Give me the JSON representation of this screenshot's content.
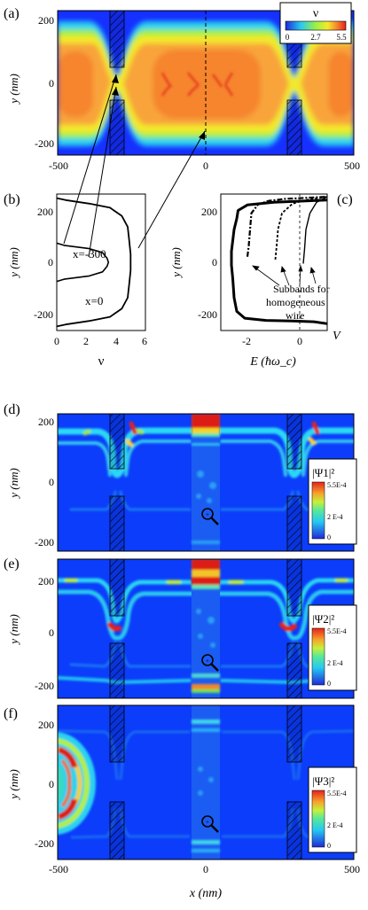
{
  "chart_data": [
    {
      "type": "heatmap",
      "panel": "(a)",
      "ylabel": "y (nm)",
      "x_range": [
        -500,
        500
      ],
      "y_range": [
        -250,
        250
      ],
      "xticks": [
        "-500",
        "0",
        "500"
      ],
      "yticks": [
        "200",
        "0",
        "-200"
      ],
      "colorbar": {
        "title": "ν",
        "ticks": [
          "0",
          "2.7",
          "5.5"
        ],
        "min": 0,
        "max": 5.5
      },
      "barriers": [
        {
          "x": [
            -330,
            -290
          ],
          "y": [
            [
              -250,
              -40
            ],
            [
              40,
              250
            ]
          ]
        },
        {
          "x": [
            290,
            330
          ],
          "y": [
            [
              -250,
              -40
            ],
            [
              40,
              250
            ]
          ]
        }
      ],
      "dashed_cut_x": 0,
      "narrow_cut_x": -300
    },
    {
      "type": "line",
      "panel": "(b)",
      "xlabel": "ν",
      "ylabel": "y (nm)",
      "xlim": [
        0,
        6
      ],
      "ylim": [
        -250,
        250
      ],
      "xticks": [
        "0",
        "2",
        "4",
        "6"
      ],
      "yticks": [
        "200",
        "0",
        "-200"
      ],
      "annotations": [
        "x=-300",
        "x=0"
      ],
      "series": [
        {
          "x": [
            0,
            0.5,
            2.2,
            3.1,
            3.4,
            3.5,
            3.4,
            3.1,
            2.2,
            0.5,
            0
          ],
          "y": [
            -70,
            -62,
            -50,
            -35,
            -15,
            0,
            15,
            35,
            50,
            62,
            70
          ]
        },
        {
          "x": [
            0,
            0.6,
            2.2,
            3.6,
            4.4,
            4.8,
            4.9,
            5.0,
            5.0,
            4.9,
            4.8,
            4.4,
            3.6,
            2.2,
            0.6,
            0
          ],
          "y": [
            -235,
            -228,
            -215,
            -200,
            -170,
            -130,
            -80,
            -30,
            30,
            80,
            130,
            170,
            200,
            215,
            228,
            235
          ]
        }
      ]
    },
    {
      "type": "line",
      "panel": "(c)",
      "xlabel": "E (ħω_c)",
      "ylabel": "y (nm)",
      "xlim": [
        -3,
        1
      ],
      "ylim": [
        -250,
        250
      ],
      "xticks": [
        "-2",
        "0"
      ],
      "yticks": [
        "200",
        "0",
        "-200"
      ],
      "annotations": [
        "Subbands for",
        "homogeneous",
        "wire",
        "V"
      ],
      "series": [
        {
          "name": "V",
          "x": [
            1.0,
            0.5,
            -0.3,
            -1.3,
            -2.1,
            -2.4,
            -2.5,
            -2.55,
            -2.6,
            -2.6,
            -2.55,
            -2.5,
            -2.4,
            -2.35,
            -2.0,
            -1.0,
            0.2,
            1.0
          ],
          "y": [
            -225,
            -218,
            -215,
            -213,
            -205,
            -180,
            -130,
            -60,
            -10,
            40,
            80,
            120,
            160,
            190,
            210,
            220,
            225,
            228
          ]
        },
        {
          "x": [
            -2.0,
            -1.95,
            -1.9,
            -1.85,
            -1.6,
            -1.2,
            -0.6,
            0.2,
            1.0
          ],
          "y": [
            20,
            60,
            120,
            180,
            212,
            225,
            232,
            236,
            240
          ]
        },
        {
          "x": [
            -0.95,
            -0.9,
            -0.85,
            -0.7,
            -0.3,
            0.2,
            0.6,
            1.0
          ],
          "y": [
            10,
            60,
            120,
            180,
            215,
            228,
            234,
            240
          ]
        },
        {
          "x": [
            0.1,
            0.15,
            0.2,
            0.35,
            0.6,
            1.0
          ],
          "y": [
            -5,
            50,
            120,
            180,
            220,
            240
          ]
        }
      ],
      "dashed_line_x": 0
    },
    {
      "type": "heatmap",
      "panel": "(d)",
      "ylabel": "y (nm)",
      "yticks": [
        "200",
        "0",
        "-200"
      ],
      "colorbar": {
        "title": "|Ψ1|²",
        "ticks": [
          "5.5E-4",
          "2 E-4",
          "0"
        ],
        "min": 0,
        "max": 0.00055
      }
    },
    {
      "type": "heatmap",
      "panel": "(e)",
      "ylabel": "y (nm)",
      "yticks": [
        "200",
        "0",
        "-200"
      ],
      "colorbar": {
        "title": "|Ψ2|²",
        "ticks": [
          "5.5E-4",
          "2 E-4",
          "0"
        ],
        "min": 0,
        "max": 0.00055
      }
    },
    {
      "type": "heatmap",
      "panel": "(f)",
      "xlabel": "x (nm)",
      "ylabel": "y (nm)",
      "xticks": [
        "-500",
        "0",
        "500"
      ],
      "yticks": [
        "200",
        "0",
        "-200"
      ],
      "colorbar": {
        "title": "|Ψ3|²",
        "ticks": [
          "5.5E-4",
          "2 E-4",
          "0"
        ],
        "min": 0,
        "max": 0.00055
      }
    }
  ],
  "colors": {
    "bg": "#0a3cff",
    "cyan": "#23d6f6",
    "green": "#8ff04a",
    "yellow": "#f4ee2b",
    "orange": "#f88a2a",
    "red": "#e5221c",
    "deep_red": "#c4101a"
  }
}
